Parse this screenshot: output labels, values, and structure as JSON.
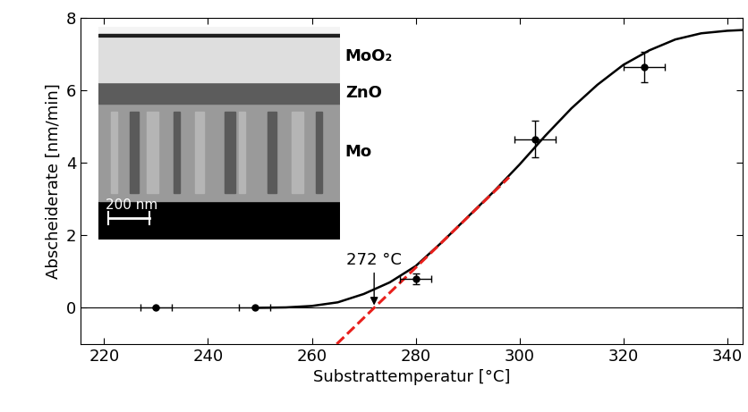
{
  "chart_data": {
    "type": "scatter",
    "x_label": "Substrattemperatur [°C]",
    "y_label": "Abscheiderate [nm/min]",
    "xlim": [
      215.5,
      343
    ],
    "ylim": [
      -1,
      8
    ],
    "xticks": [
      220,
      240,
      260,
      280,
      300,
      320,
      340
    ],
    "yticks": [
      0,
      2,
      4,
      6,
      8
    ],
    "grid": false,
    "hline": 0,
    "series": [
      {
        "type": "scatter",
        "color": "#000000",
        "marker": "o",
        "x": [
          230,
          249,
          280,
          303,
          324
        ],
        "values": [
          0,
          0,
          0.8,
          4.65,
          6.65
        ],
        "xerr": [
          3,
          3,
          3,
          4,
          4
        ],
        "yerr": [
          0,
          0,
          0.15,
          0.5,
          0.42
        ]
      },
      {
        "type": "line",
        "color": "#000000",
        "line_style": "solid",
        "x": [
          250,
          255,
          260,
          265,
          270,
          275,
          280,
          285,
          290,
          295,
          300,
          305,
          310,
          315,
          320,
          325,
          330,
          335,
          340,
          343
        ],
        "values": [
          0,
          0.01,
          0.05,
          0.15,
          0.38,
          0.7,
          1.15,
          1.8,
          2.5,
          3.2,
          3.95,
          4.75,
          5.5,
          6.15,
          6.7,
          7.1,
          7.4,
          7.57,
          7.64,
          7.66
        ]
      },
      {
        "type": "line",
        "color": "#e8201c",
        "line_style": "dashed",
        "x": [
          264.8,
          298
        ],
        "values": [
          -1,
          3.6
        ]
      }
    ],
    "annotation": {
      "text": "272 °C",
      "x": 272,
      "y": 0
    },
    "inset": {
      "labels": [
        "MoO₂",
        "ZnO",
        "Mo"
      ],
      "scale_bar": "200 nm"
    }
  }
}
